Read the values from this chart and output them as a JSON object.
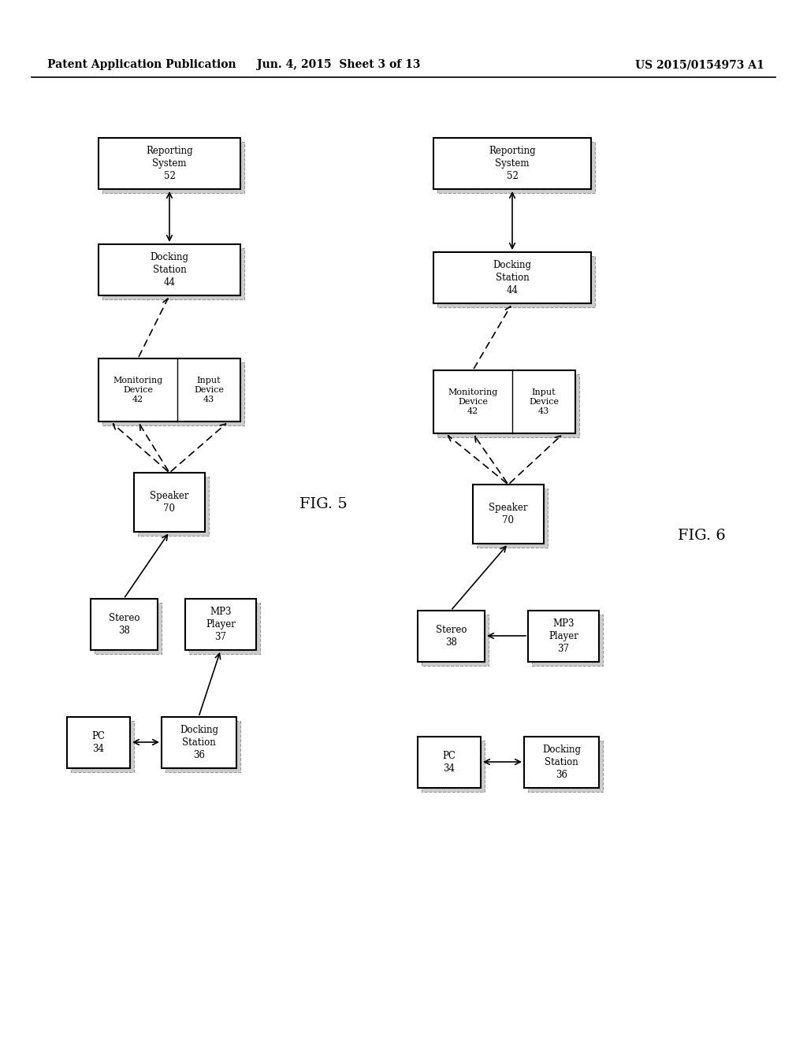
{
  "title_left": "Patent Application Publication",
  "title_mid": "Jun. 4, 2015  Sheet 3 of 13",
  "title_right": "US 2015/0154973 A1",
  "fig5_label": "FIG. 5",
  "fig6_label": "FIG. 6",
  "background": "#ffffff"
}
